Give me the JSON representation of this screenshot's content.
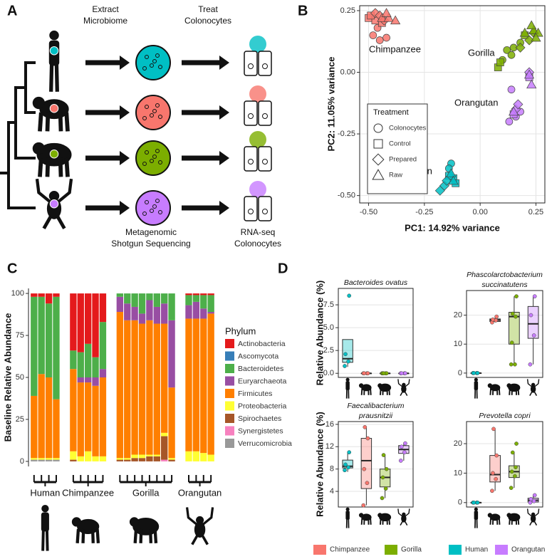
{
  "diagram": {
    "letter": "A",
    "steps": [
      [
        "Extract",
        "Microbiome"
      ],
      [
        "Treat",
        "Colonocytes"
      ]
    ],
    "outputs": [
      [
        "Metagenomic",
        "Shotgun Sequencing"
      ],
      [
        "RNA-seq",
        "Colonocytes"
      ]
    ],
    "colors": [
      "#00bfc4",
      "#f8766d",
      "#7cae00",
      "#c77cff"
    ]
  },
  "box_legend": [
    {
      "name": "Chimpanzee",
      "color": "#f8766d"
    },
    {
      "name": "Gorilla",
      "color": "#7cae00"
    },
    {
      "name": "Human",
      "color": "#00bfc4"
    },
    {
      "name": "Orangutan",
      "color": "#c77cff"
    }
  ],
  "chart_data": [
    {
      "type": "scatter",
      "letter": "B",
      "xlabel": "PC1: 14.92% variance",
      "ylabel": "PC2: 11.05% variance",
      "xlim": [
        -0.54,
        0.29
      ],
      "ylim": [
        -0.53,
        0.27
      ],
      "grid": true,
      "frame": true,
      "xticks": [
        {
          "value": -0.5,
          "label": "-0.50"
        },
        -0.25,
        {
          "value": 0,
          "label": "0.00"
        },
        0.25
      ],
      "yticks": [
        {
          "value": -0.5,
          "label": "-0.50"
        },
        -0.25,
        {
          "value": 0,
          "label": "0.00"
        },
        0.25
      ],
      "legend": {
        "title": "Treatment",
        "entries": [
          "Colonocytes",
          "Control",
          "Prepared",
          "Raw"
        ]
      },
      "series": [
        {
          "name": "Chimpanzee",
          "color": "#f8766d",
          "x": [
            -0.48,
            -0.45,
            -0.42,
            -0.46,
            -0.5,
            -0.47,
            -0.44,
            -0.49,
            -0.47,
            -0.45,
            -0.43,
            -0.44,
            -0.41,
            -0.38,
            -0.42
          ],
          "values": [
            0.15,
            0.13,
            0.14,
            0.18,
            0.22,
            0.21,
            0.2,
            0.23,
            0.24,
            0.23,
            0.21,
            0.22,
            0.22,
            0.21,
            0.24
          ],
          "treatment": [
            0,
            0,
            0,
            0,
            1,
            1,
            1,
            1,
            2,
            2,
            2,
            3,
            3,
            3,
            3
          ]
        },
        {
          "name": "Gorilla",
          "color": "#7cae00",
          "x": [
            0.12,
            0.15,
            0.18,
            0.14,
            0.1,
            0.08,
            0.09,
            0.2,
            0.22,
            0.24,
            0.18,
            0.2,
            0.24,
            0.26,
            0.23,
            0.25
          ],
          "values": [
            0.09,
            0.1,
            0.12,
            0.07,
            0.05,
            0.02,
            0.04,
            0.15,
            0.13,
            0.16,
            0.1,
            0.16,
            0.17,
            0.16,
            0.19,
            0.14
          ],
          "treatment": [
            0,
            0,
            0,
            0,
            0,
            1,
            1,
            1,
            2,
            2,
            2,
            3,
            3,
            3,
            3,
            3
          ]
        },
        {
          "name": "Orangutan",
          "color": "#c77cff",
          "x": [
            0.14,
            0.16,
            0.13,
            0.18,
            0.15,
            0.22,
            0.22,
            0.16,
            0.17,
            0.22,
            0.23,
            0.15
          ],
          "values": [
            -0.07,
            -0.18,
            -0.2,
            -0.16,
            -0.17,
            -0.02,
            0,
            -0.15,
            -0.13,
            -0.01,
            -0.05,
            -0.16
          ],
          "treatment": [
            0,
            0,
            0,
            0,
            1,
            1,
            2,
            2,
            2,
            3,
            3,
            3
          ]
        },
        {
          "name": "Human",
          "color": "#00bfc4",
          "x": [
            -0.13,
            -0.14,
            -0.12,
            -0.14,
            -0.11,
            -0.18,
            -0.16,
            -0.15,
            -0.13,
            -0.12
          ],
          "values": [
            -0.37,
            -0.39,
            -0.43,
            -0.42,
            -0.45,
            -0.48,
            -0.46,
            -0.44,
            -0.41,
            -0.44
          ],
          "treatment": [
            0,
            0,
            1,
            1,
            1,
            2,
            2,
            2,
            3,
            3
          ]
        }
      ]
    },
    {
      "type": "stacked_bar",
      "letter": "C",
      "ylabel": "Baseline Relative Abundance",
      "legend_title": "Phylum",
      "ylim": [
        -3,
        103
      ],
      "yticks": [
        0,
        25,
        50,
        75,
        100
      ],
      "grid": false,
      "frame": false,
      "categories": [
        "Human",
        "Human",
        "Human",
        "Human",
        "Chimpanzee",
        "Chimpanzee",
        "Chimpanzee",
        "Chimpanzee",
        "Chimpanzee",
        "Gorilla",
        "Gorilla",
        "Gorilla",
        "Gorilla",
        "Gorilla",
        "Gorilla",
        "Gorilla",
        "Gorilla",
        "Orangutan",
        "Orangutan",
        "Orangutan",
        "Orangutan"
      ],
      "series": [
        {
          "name": "Actinobacteria",
          "color": "#e41a1c",
          "values": [
            2,
            2,
            6,
            2,
            34,
            35,
            30,
            38,
            17,
            0,
            0,
            0,
            0,
            0,
            0,
            0,
            0,
            1,
            1,
            1,
            1
          ]
        },
        {
          "name": "Ascomycota",
          "color": "#377eb8",
          "values": [
            0,
            0,
            0,
            0,
            0,
            0,
            0,
            0,
            0,
            0,
            0,
            0,
            0,
            0,
            0,
            0,
            0,
            0,
            0,
            0,
            0
          ]
        },
        {
          "name": "Bacteroidetes",
          "color": "#4daf4a",
          "values": [
            59,
            46,
            44,
            61,
            11,
            15,
            20,
            12,
            28,
            2,
            6,
            8,
            12,
            4,
            8,
            6,
            16,
            6,
            4,
            8,
            10
          ]
        },
        {
          "name": "Euryarchaeota",
          "color": "#984ea3",
          "values": [
            0,
            0,
            0,
            0,
            0,
            3,
            3,
            5,
            5,
            9,
            10,
            8,
            6,
            12,
            10,
            12,
            40,
            8,
            10,
            6,
            1
          ]
        },
        {
          "name": "Firmicutes",
          "color": "#ff7f00",
          "values": [
            37,
            50,
            48,
            35,
            49,
            44,
            41,
            42,
            47,
            87,
            82,
            80,
            78,
            80,
            78,
            65,
            42,
            79,
            79,
            80,
            84
          ]
        },
        {
          "name": "Proteobacteria",
          "color": "#ffff33",
          "values": [
            1,
            1,
            1,
            1,
            5,
            3,
            6,
            3,
            3,
            1,
            1,
            2,
            2,
            1,
            1,
            2,
            1,
            6,
            6,
            5,
            4
          ]
        },
        {
          "name": "Spirochaetes",
          "color": "#a65628",
          "values": [
            0,
            0,
            0,
            0,
            1,
            0,
            0,
            0,
            0,
            1,
            1,
            2,
            2,
            3,
            3,
            14,
            1,
            0,
            0,
            0,
            0
          ]
        },
        {
          "name": "Synergistetes",
          "color": "#f781bf",
          "values": [
            0,
            0,
            0,
            0,
            0,
            0,
            0,
            0,
            0,
            0,
            0,
            0,
            0,
            0,
            0,
            1,
            0,
            0,
            0,
            0,
            0
          ]
        },
        {
          "name": "Verrucomicrobia",
          "color": "#999999",
          "values": [
            1,
            1,
            1,
            1,
            0,
            0,
            0,
            0,
            0,
            0,
            0,
            0,
            0,
            0,
            0,
            0,
            0,
            0,
            0,
            0,
            0
          ]
        }
      ]
    },
    {
      "type": "box",
      "letter": "D",
      "title": [
        "Bacteroides ovatus"
      ],
      "ylabel": "Relative Abundance (%)",
      "ylim": [
        -0.45,
        9.3
      ],
      "yticks": [
        {
          "value": 0,
          "label": "0.0"
        },
        2.5,
        {
          "value": 5,
          "label": "5.0"
        },
        7.5
      ],
      "grid": true,
      "frame": true,
      "boxes": [
        {
          "group": 2,
          "low": 0.7,
          "q1": 1.2,
          "median": 1.6,
          "q3": 3.7,
          "high": 3.7,
          "points": [
            0.8,
            1.3,
            2.1,
            8.5
          ]
        },
        {
          "group": 0,
          "low": 0,
          "q1": 0,
          "median": 0,
          "q3": 0,
          "high": 0,
          "points": [
            0,
            0,
            0,
            0
          ]
        },
        {
          "group": 1,
          "low": 0,
          "q1": 0,
          "median": 0,
          "q3": 0,
          "high": 0,
          "points": [
            0,
            0,
            0,
            0,
            0
          ]
        },
        {
          "group": 3,
          "low": 0,
          "q1": 0,
          "median": 0,
          "q3": 0,
          "high": 0,
          "points": [
            0,
            0,
            0,
            0
          ]
        }
      ]
    },
    {
      "type": "box",
      "title": [
        "Phascolarctobacterium",
        "succinatutens"
      ],
      "ylim": [
        -1.5,
        28.5
      ],
      "yticks": [
        0,
        10,
        20
      ],
      "grid": true,
      "frame": true,
      "boxes": [
        {
          "group": 2,
          "low": 0,
          "q1": 0,
          "median": 0,
          "q3": 0,
          "high": 0,
          "points": [
            0,
            0,
            0,
            0
          ]
        },
        {
          "group": 0,
          "low": 17.5,
          "q1": 17.8,
          "median": 18.3,
          "q3": 18.7,
          "high": 19.5,
          "points": [
            17.5,
            18.2,
            18.5,
            19.5
          ]
        },
        {
          "group": 1,
          "low": 3,
          "q1": 10,
          "median": 19.5,
          "q3": 21,
          "high": 26.5,
          "points": [
            3,
            3,
            10.5,
            19.5,
            20.5,
            26.5
          ]
        },
        {
          "group": 3,
          "low": 3,
          "q1": 12,
          "median": 17,
          "q3": 23,
          "high": 26.5,
          "points": [
            3,
            13,
            20,
            26.5
          ]
        }
      ]
    },
    {
      "type": "box",
      "title": [
        "Faecalibacterium",
        "prausnitzii"
      ],
      "ylabel": "Relative Abundance (%)",
      "ylim": [
        1.2,
        16.5
      ],
      "yticks": [
        4,
        8,
        12,
        16
      ],
      "grid": true,
      "frame": true,
      "boxes": [
        {
          "group": 2,
          "low": 7.5,
          "q1": 8.2,
          "median": 8.5,
          "q3": 9.6,
          "high": 11,
          "points": [
            7.8,
            8.3,
            8.8,
            11
          ]
        },
        {
          "group": 0,
          "low": 1.5,
          "q1": 4.5,
          "median": 9.5,
          "q3": 13.5,
          "high": 15.5,
          "points": [
            1.5,
            5.5,
            8,
            13.5,
            15.5
          ]
        },
        {
          "group": 1,
          "low": 2.8,
          "q1": 4.8,
          "median": 6.5,
          "q3": 8,
          "high": 10.5,
          "points": [
            2.8,
            4.5,
            6.5,
            8,
            10.5
          ]
        },
        {
          "group": 3,
          "low": 9.5,
          "q1": 10.8,
          "median": 11.5,
          "q3": 12.2,
          "high": 12.6,
          "points": [
            9.5,
            11,
            12,
            12.6
          ]
        }
      ]
    },
    {
      "type": "box",
      "title": [
        "Prevotella copri"
      ],
      "ylim": [
        -1.5,
        27.5
      ],
      "yticks": [
        0,
        10,
        20
      ],
      "grid": true,
      "frame": true,
      "boxes": [
        {
          "group": 2,
          "low": 0,
          "q1": 0,
          "median": 0,
          "q3": 0,
          "high": 0,
          "points": [
            0,
            0,
            0,
            0
          ]
        },
        {
          "group": 0,
          "low": 4,
          "q1": 7,
          "median": 9.5,
          "q3": 16,
          "high": 25,
          "points": [
            4,
            8,
            10,
            16,
            25
          ]
        },
        {
          "group": 1,
          "low": 5,
          "q1": 8.5,
          "median": 10.5,
          "q3": 12.5,
          "high": 17,
          "points": [
            5,
            9,
            10.5,
            12,
            17,
            20
          ]
        },
        {
          "group": 3,
          "low": 0,
          "q1": 0.2,
          "median": 0.8,
          "q3": 1.5,
          "high": 2.5,
          "points": [
            0,
            0.5,
            1.2,
            2.5
          ]
        }
      ]
    }
  ]
}
